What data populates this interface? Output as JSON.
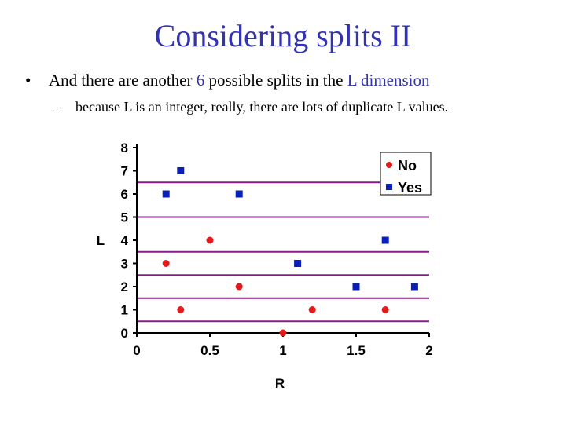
{
  "slide": {
    "title": "Considering splits II",
    "bullet_marker": "•",
    "bullet_text_1": "And there are another",
    "bullet_highlight_number": "6",
    "bullet_text_2": "possible splits in the",
    "bullet_highlight_dim": "L dimension",
    "sub_marker": "–",
    "sub_bullet": "because L is an integer, really, there are lots of duplicate L values."
  },
  "chart_data": {
    "type": "scatter",
    "xlabel": "R",
    "ylabel": "L",
    "xlim": [
      0,
      2
    ],
    "ylim": [
      0,
      8
    ],
    "x_ticks": [
      "0",
      "0.5",
      "1",
      "1.5",
      "2"
    ],
    "y_ticks": [
      "0",
      "1",
      "2",
      "3",
      "4",
      "5",
      "6",
      "7",
      "8"
    ],
    "legend_position": "top-right",
    "series": [
      {
        "name": "No",
        "color": "#e31a1c",
        "marker": "circle",
        "points": [
          [
            0.2,
            3
          ],
          [
            0.3,
            1
          ],
          [
            0.5,
            4
          ],
          [
            0.7,
            2
          ],
          [
            1.0,
            0
          ],
          [
            1.2,
            1
          ],
          [
            1.7,
            1
          ]
        ]
      },
      {
        "name": "Yes",
        "color": "#0a1fb8",
        "marker": "square",
        "points": [
          [
            0.2,
            6
          ],
          [
            0.3,
            7
          ],
          [
            0.7,
            6
          ],
          [
            1.1,
            3
          ],
          [
            1.5,
            2
          ],
          [
            1.7,
            4
          ],
          [
            1.9,
            2
          ]
        ]
      }
    ],
    "split_lines": {
      "color": "#8b1a8b",
      "axis": "y",
      "values": [
        0.5,
        1.5,
        2.5,
        3.5,
        5,
        6.5
      ]
    }
  }
}
